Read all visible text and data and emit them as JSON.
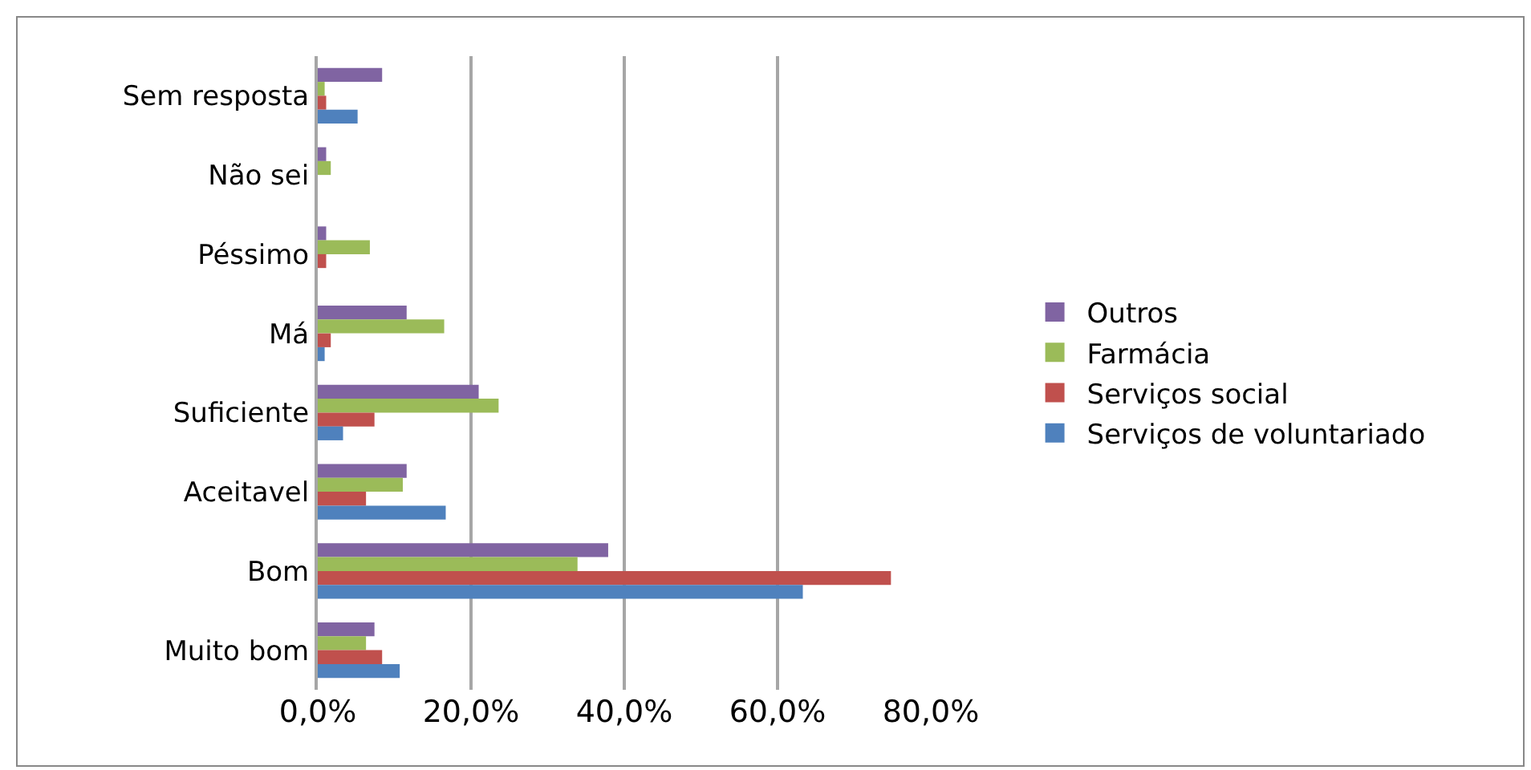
{
  "chart_data": {
    "type": "bar",
    "orientation": "horizontal",
    "categories": [
      "Sem resposta",
      "Não sei",
      "Péssimo",
      "Má",
      "Suficiente",
      "Aceitavel",
      "Bom",
      "Muito bom"
    ],
    "series": [
      {
        "name": "Outros",
        "color": "#8064a2",
        "values": [
          8.4,
          1.1,
          1.1,
          11.6,
          21.0,
          11.6,
          37.9,
          7.4
        ]
      },
      {
        "name": "Farmácia",
        "color": "#9bbb59",
        "values": [
          0.9,
          1.7,
          6.8,
          16.5,
          23.6,
          11.1,
          33.9,
          6.3
        ]
      },
      {
        "name": "Serviços social",
        "color": "#c0504d",
        "values": [
          1.1,
          null,
          1.1,
          1.7,
          7.4,
          6.3,
          74.8,
          8.4
        ]
      },
      {
        "name": "Serviços de voluntariado",
        "color": "#4f81bd",
        "values": [
          5.2,
          null,
          null,
          0.9,
          3.3,
          16.7,
          63.3,
          10.7
        ]
      }
    ],
    "xlim": [
      0,
      80
    ],
    "xticks": [
      {
        "value": 0,
        "label": "0,0%"
      },
      {
        "value": 20,
        "label": "20,0%"
      },
      {
        "value": 40,
        "label": "40,0%"
      },
      {
        "value": 60,
        "label": "60,0%"
      },
      {
        "value": 80,
        "label": "80,0%"
      }
    ],
    "grid": "x",
    "legend": "right"
  }
}
